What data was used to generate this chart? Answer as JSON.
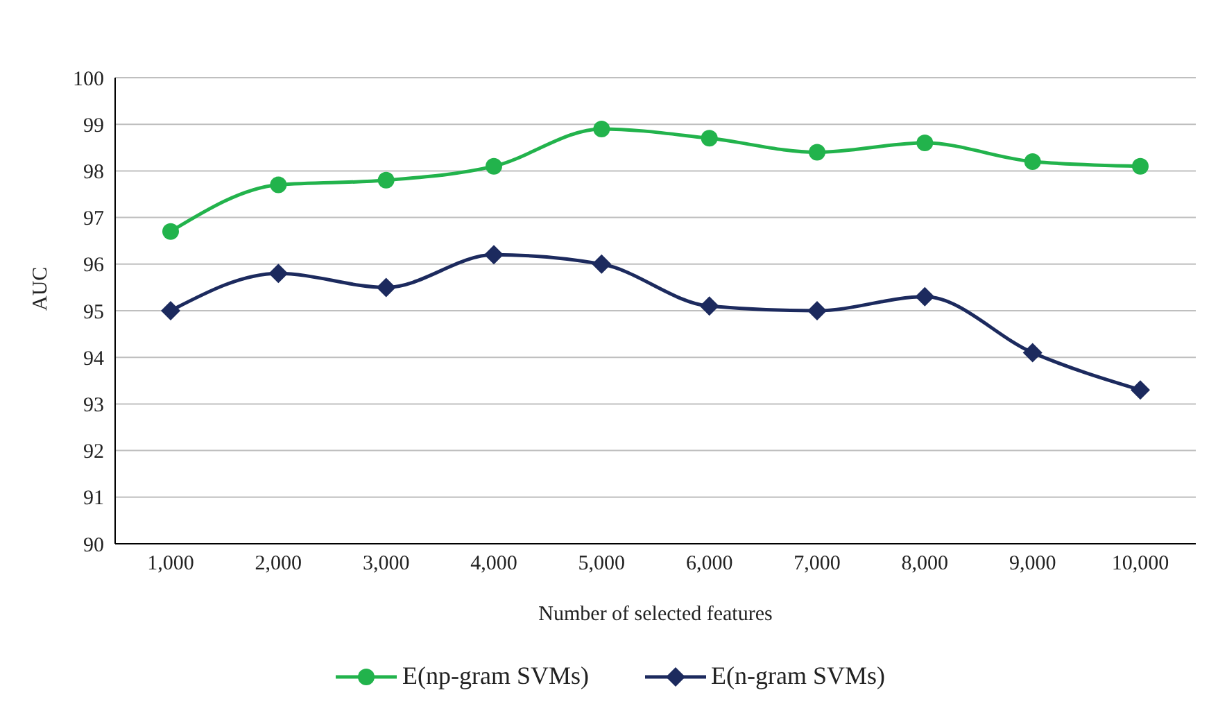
{
  "chart_data": {
    "type": "line",
    "xlabel": "Number of selected features",
    "ylabel": "AUC",
    "categories": [
      "1,000",
      "2,000",
      "3,000",
      "4,000",
      "5,000",
      "6,000",
      "7,000",
      "8,000",
      "9,000",
      "10,000"
    ],
    "series": [
      {
        "name": "E(np-gram SVMs)",
        "color": "#22b34c",
        "marker": "circle",
        "values": [
          96.7,
          97.7,
          97.8,
          98.1,
          98.9,
          98.7,
          98.4,
          98.6,
          98.2,
          98.1
        ]
      },
      {
        "name": "E(n-gram SVMs)",
        "color": "#1c2a5e",
        "marker": "diamond",
        "values": [
          95.0,
          95.8,
          95.5,
          96.2,
          96.0,
          95.1,
          95.0,
          95.3,
          94.1,
          93.3
        ]
      }
    ],
    "ylim": [
      90,
      100
    ],
    "yticks": [
      90,
      91,
      92,
      93,
      94,
      95,
      96,
      97,
      98,
      99,
      100
    ],
    "grid": "y",
    "legend": "bottom",
    "line_style": "solid"
  }
}
